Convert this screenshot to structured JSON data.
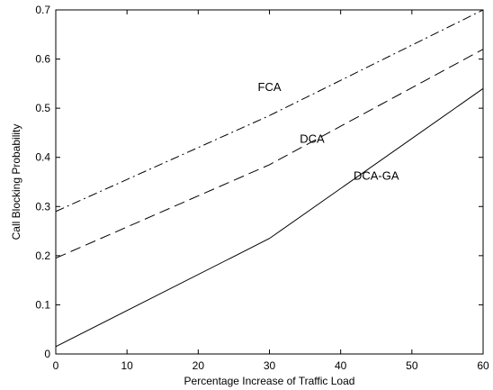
{
  "chart_data": {
    "type": "line",
    "xlabel": "Percentage Increase of Traffic Load",
    "ylabel": "Call Blocking Probability",
    "xlim": [
      0,
      60
    ],
    "ylim": [
      0,
      0.7
    ],
    "x_ticks": [
      0,
      10,
      20,
      30,
      40,
      50,
      60
    ],
    "y_ticks": [
      0,
      0.1,
      0.2,
      0.3,
      0.4,
      0.5,
      0.6,
      0.7
    ],
    "x_tick_labels": [
      "0",
      "10",
      "20",
      "30",
      "40",
      "50",
      "60"
    ],
    "y_tick_labels": [
      "0",
      "0.1",
      "0.2",
      "0.3",
      "0.4",
      "0.5",
      "0.6",
      "0.7"
    ],
    "grid": false,
    "series": [
      {
        "name": "FCA",
        "line_style": "dash-dot",
        "color": "#000000",
        "x": [
          0,
          30,
          60
        ],
        "y": [
          0.29,
          0.485,
          0.7
        ]
      },
      {
        "name": "DCA",
        "line_style": "dashed",
        "color": "#000000",
        "x": [
          0,
          30,
          60
        ],
        "y": [
          0.195,
          0.385,
          0.62
        ]
      },
      {
        "name": "DCA-GA",
        "line_style": "solid",
        "color": "#000000",
        "x": [
          0,
          30,
          60
        ],
        "y": [
          0.015,
          0.235,
          0.54
        ]
      }
    ],
    "annotations": [
      {
        "text": "FCA",
        "x": 30,
        "y": 0.535
      },
      {
        "text": "DCA",
        "x": 36,
        "y": 0.43
      },
      {
        "text": "DCA-GA",
        "x": 45,
        "y": 0.355
      }
    ]
  }
}
